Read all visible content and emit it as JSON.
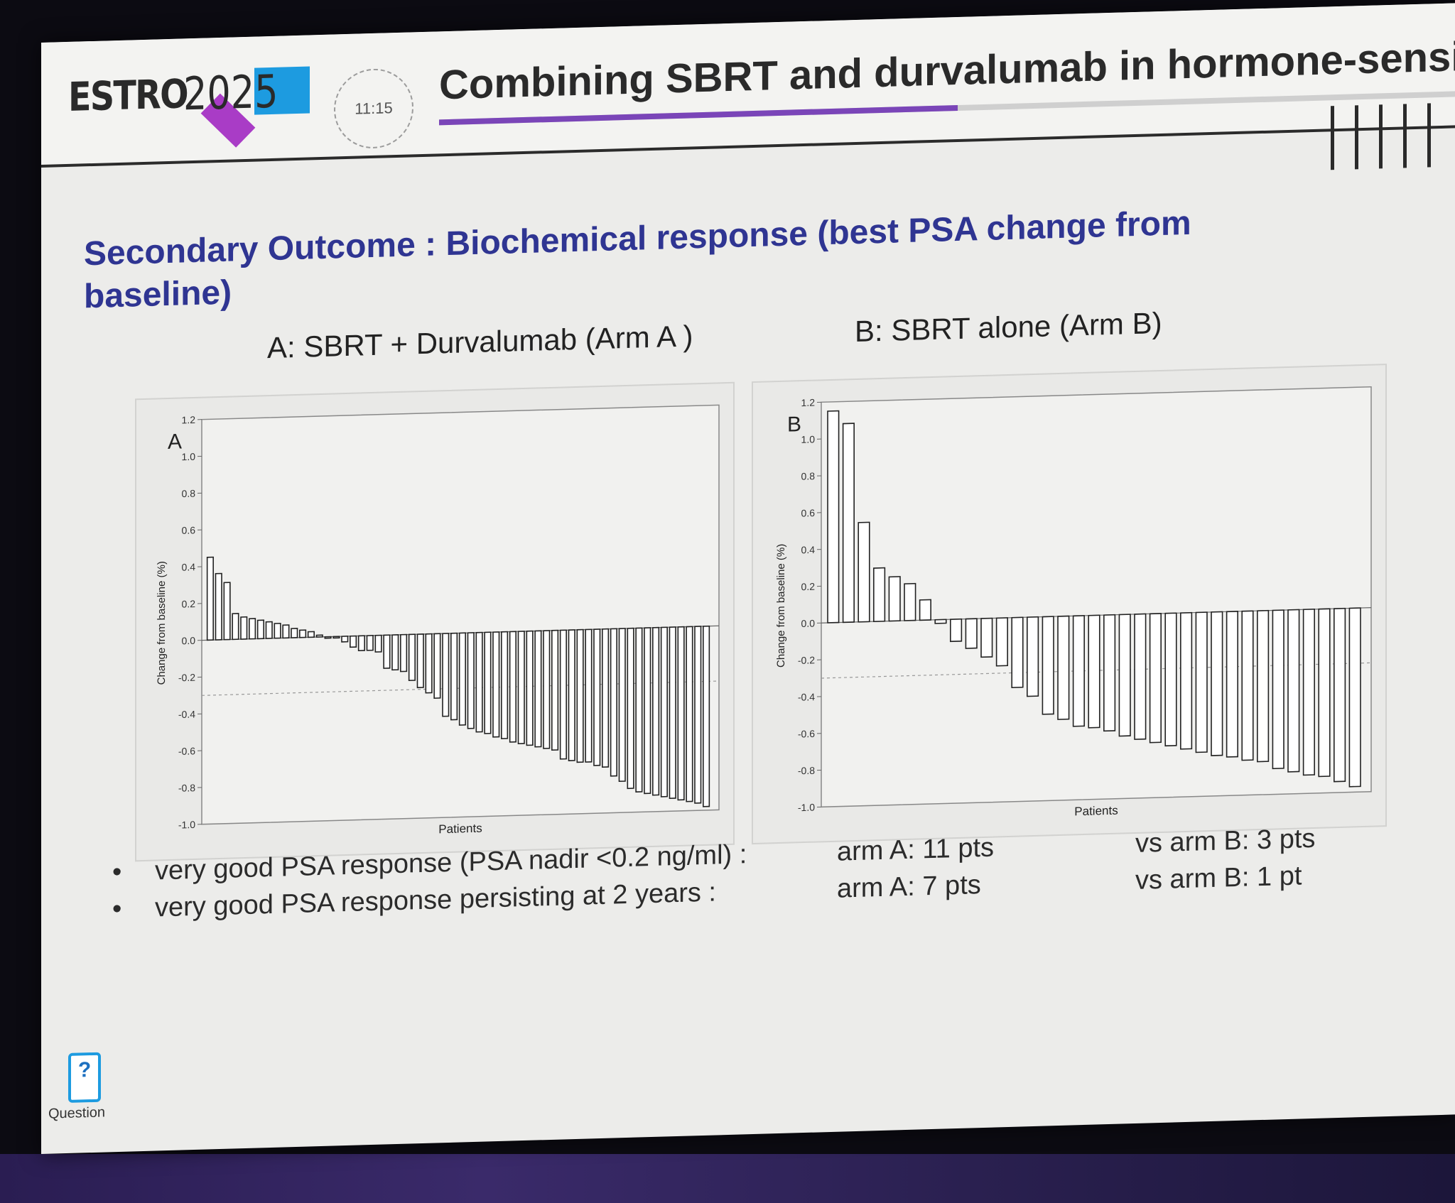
{
  "header": {
    "logo_text": "ESTRO",
    "logo_year": "2025",
    "timer": "11:15",
    "title": "Combining SBRT and durvalumab in hormone-sensitive"
  },
  "heading": "Secondary Outcome : Biochemical response (best PSA change from baseline)",
  "colors": {
    "heading": "#2f3592",
    "accent_bar": "#7a45b8",
    "logo_blue": "#1d9be0",
    "logo_purple": "#a93cc6"
  },
  "chart_data": [
    {
      "type": "bar",
      "panel_title": "A: SBRT + Durvalumab (Arm A )",
      "panel_label": "A",
      "xlabel": "Patients",
      "ylabel": "Change from baseline (%)",
      "ylim": [
        -1.0,
        1.2
      ],
      "yticks": [
        "1.2",
        "1.0",
        "0.8",
        "0.6",
        "0.4",
        "0.2",
        "0.0",
        "-0.2",
        "-0.4",
        "-0.6",
        "-0.8",
        "-1.0"
      ],
      "reference_line": -0.3,
      "values": [
        0.45,
        0.36,
        0.31,
        0.14,
        0.12,
        0.11,
        0.1,
        0.09,
        0.08,
        0.07,
        0.05,
        0.04,
        0.03,
        0.01,
        0.0,
        0.0,
        -0.03,
        -0.06,
        -0.08,
        -0.08,
        -0.09,
        -0.18,
        -0.19,
        -0.2,
        -0.25,
        -0.29,
        -0.32,
        -0.35,
        -0.45,
        -0.47,
        -0.5,
        -0.52,
        -0.54,
        -0.55,
        -0.57,
        -0.58,
        -0.6,
        -0.61,
        -0.62,
        -0.63,
        -0.64,
        -0.65,
        -0.7,
        -0.71,
        -0.72,
        -0.72,
        -0.74,
        -0.75,
        -0.8,
        -0.83,
        -0.87,
        -0.89,
        -0.9,
        -0.91,
        -0.92,
        -0.93,
        -0.94,
        -0.95,
        -0.96,
        -0.98
      ]
    },
    {
      "type": "bar",
      "panel_title": "B: SBRT alone (Arm B)",
      "panel_label": "B",
      "xlabel": "Patients",
      "ylabel": "Change from baseline (%)",
      "ylim": [
        -1.0,
        1.2
      ],
      "yticks": [
        "1.2",
        "1.0",
        "0.8",
        "0.6",
        "0.4",
        "0.2",
        "0.0",
        "-0.2",
        "-0.4",
        "-0.6",
        "-0.8",
        "-1.0"
      ],
      "reference_line": -0.3,
      "values": [
        1.15,
        1.08,
        0.54,
        0.29,
        0.24,
        0.2,
        0.11,
        -0.02,
        -0.12,
        -0.16,
        -0.21,
        -0.26,
        -0.38,
        -0.43,
        -0.53,
        -0.56,
        -0.6,
        -0.61,
        -0.63,
        -0.66,
        -0.68,
        -0.7,
        -0.72,
        -0.74,
        -0.76,
        -0.78,
        -0.79,
        -0.81,
        -0.82,
        -0.86,
        -0.88,
        -0.9,
        -0.91,
        -0.94,
        -0.97
      ]
    }
  ],
  "bullets": [
    {
      "text": "very good PSA response (PSA nadir <0.2 ng/ml) :",
      "arm_a": "arm A: 11 pts",
      "arm_b": "vs arm B: 3 pts"
    },
    {
      "text": "very good PSA response persisting at 2 years :",
      "arm_a": "arm A: 7 pts",
      "arm_b": "vs arm B: 1 pt"
    }
  ],
  "bullet_symbol": "•",
  "question": {
    "icon": "phone-question-icon",
    "label": "Question",
    "symbol": "?"
  }
}
